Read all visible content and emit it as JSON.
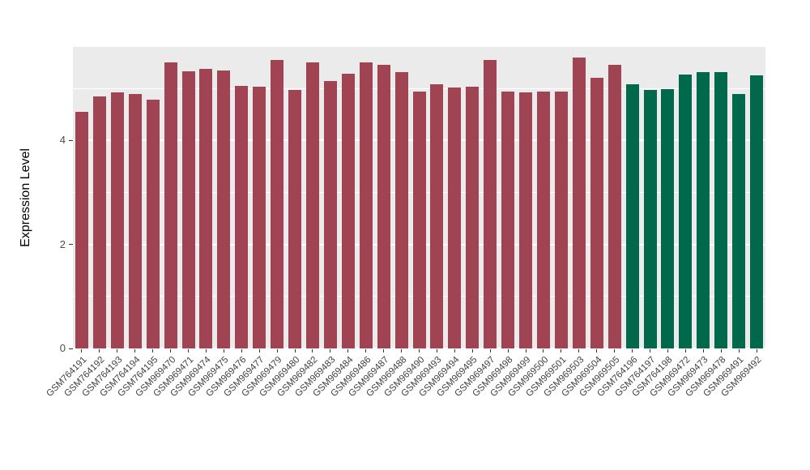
{
  "chart_data": {
    "type": "bar",
    "title": "",
    "xlabel": "",
    "ylabel": "Expression Level",
    "ylim": [
      0,
      5.8
    ],
    "yticks_major": [
      0,
      2,
      4
    ],
    "yticks_minor": [
      1,
      3,
      5
    ],
    "grid": "on",
    "legend": "none",
    "panel_background": "#EBEBEB",
    "group_colors": {
      "maroon": "#A04352",
      "green": "#00684B"
    },
    "bars": [
      {
        "label": "GSM764191",
        "value": 4.55,
        "group": "maroon"
      },
      {
        "label": "GSM764192",
        "value": 4.85,
        "group": "maroon"
      },
      {
        "label": "GSM764193",
        "value": 4.92,
        "group": "maroon"
      },
      {
        "label": "GSM764194",
        "value": 4.9,
        "group": "maroon"
      },
      {
        "label": "GSM764195",
        "value": 4.78,
        "group": "maroon"
      },
      {
        "label": "GSM969470",
        "value": 5.5,
        "group": "maroon"
      },
      {
        "label": "GSM969471",
        "value": 5.33,
        "group": "maroon"
      },
      {
        "label": "GSM969474",
        "value": 5.38,
        "group": "maroon"
      },
      {
        "label": "GSM969475",
        "value": 5.35,
        "group": "maroon"
      },
      {
        "label": "GSM969476",
        "value": 5.05,
        "group": "maroon"
      },
      {
        "label": "GSM969477",
        "value": 5.04,
        "group": "maroon"
      },
      {
        "label": "GSM969479",
        "value": 5.55,
        "group": "maroon"
      },
      {
        "label": "GSM969480",
        "value": 4.97,
        "group": "maroon"
      },
      {
        "label": "GSM969482",
        "value": 5.5,
        "group": "maroon"
      },
      {
        "label": "GSM969483",
        "value": 5.15,
        "group": "maroon"
      },
      {
        "label": "GSM969484",
        "value": 5.28,
        "group": "maroon"
      },
      {
        "label": "GSM969486",
        "value": 5.5,
        "group": "maroon"
      },
      {
        "label": "GSM969487",
        "value": 5.45,
        "group": "maroon"
      },
      {
        "label": "GSM969488",
        "value": 5.32,
        "group": "maroon"
      },
      {
        "label": "GSM969490",
        "value": 4.95,
        "group": "maroon"
      },
      {
        "label": "GSM969493",
        "value": 5.08,
        "group": "maroon"
      },
      {
        "label": "GSM969494",
        "value": 5.02,
        "group": "maroon"
      },
      {
        "label": "GSM969495",
        "value": 5.03,
        "group": "maroon"
      },
      {
        "label": "GSM969497",
        "value": 5.55,
        "group": "maroon"
      },
      {
        "label": "GSM969498",
        "value": 4.95,
        "group": "maroon"
      },
      {
        "label": "GSM969499",
        "value": 4.92,
        "group": "maroon"
      },
      {
        "label": "GSM969500",
        "value": 4.95,
        "group": "maroon"
      },
      {
        "label": "GSM969501",
        "value": 4.94,
        "group": "maroon"
      },
      {
        "label": "GSM969503",
        "value": 5.6,
        "group": "maroon"
      },
      {
        "label": "GSM969504",
        "value": 5.2,
        "group": "maroon"
      },
      {
        "label": "GSM969505",
        "value": 5.45,
        "group": "maroon"
      },
      {
        "label": "GSM764196",
        "value": 5.08,
        "group": "green"
      },
      {
        "label": "GSM764197",
        "value": 4.97,
        "group": "green"
      },
      {
        "label": "GSM764198",
        "value": 4.99,
        "group": "green"
      },
      {
        "label": "GSM969472",
        "value": 5.27,
        "group": "green"
      },
      {
        "label": "GSM969473",
        "value": 5.32,
        "group": "green"
      },
      {
        "label": "GSM969478",
        "value": 5.31,
        "group": "green"
      },
      {
        "label": "GSM969491",
        "value": 4.9,
        "group": "green"
      },
      {
        "label": "GSM969492",
        "value": 5.26,
        "group": "green"
      }
    ]
  }
}
